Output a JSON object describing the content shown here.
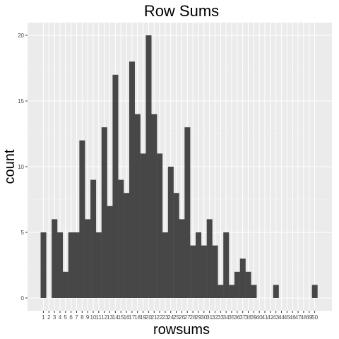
{
  "chart_data": {
    "type": "bar",
    "title": "Row Sums",
    "xlabel": "rowsums",
    "ylabel": "count",
    "categories": [
      "1",
      "2",
      "3",
      "4",
      "5",
      "6",
      "7",
      "8",
      "9",
      "10",
      "11",
      "12",
      "13",
      "14",
      "15",
      "16",
      "17",
      "18",
      "19",
      "20",
      "21",
      "22",
      "23",
      "24",
      "25",
      "26",
      "27",
      "28",
      "29",
      "30",
      "31",
      "32",
      "33",
      "34",
      "35",
      "36",
      "37",
      "38",
      "39",
      "40",
      "41",
      "42",
      "43",
      "44",
      "45",
      "46",
      "47",
      "48",
      "49",
      "50"
    ],
    "values": [
      5,
      0,
      6,
      5,
      2,
      5,
      5,
      12,
      6,
      9,
      5,
      13,
      7,
      17,
      9,
      8,
      18,
      14,
      11,
      20,
      14,
      11,
      5,
      10,
      8,
      6,
      13,
      4,
      5,
      4,
      6,
      4,
      1,
      5,
      1,
      2,
      3,
      2,
      1,
      0,
      0,
      0,
      1,
      0,
      0,
      0,
      0,
      0,
      0,
      1
    ],
    "ylim": [
      0,
      21
    ],
    "y_ticks": [
      0,
      5,
      10,
      15,
      20
    ],
    "grid": true,
    "colors": {
      "panel": "#ebebeb",
      "grid_major": "#ffffff",
      "grid_minor": "#f2f2f2",
      "bar": "#474747",
      "tick_text": "#4d4d4d"
    }
  }
}
